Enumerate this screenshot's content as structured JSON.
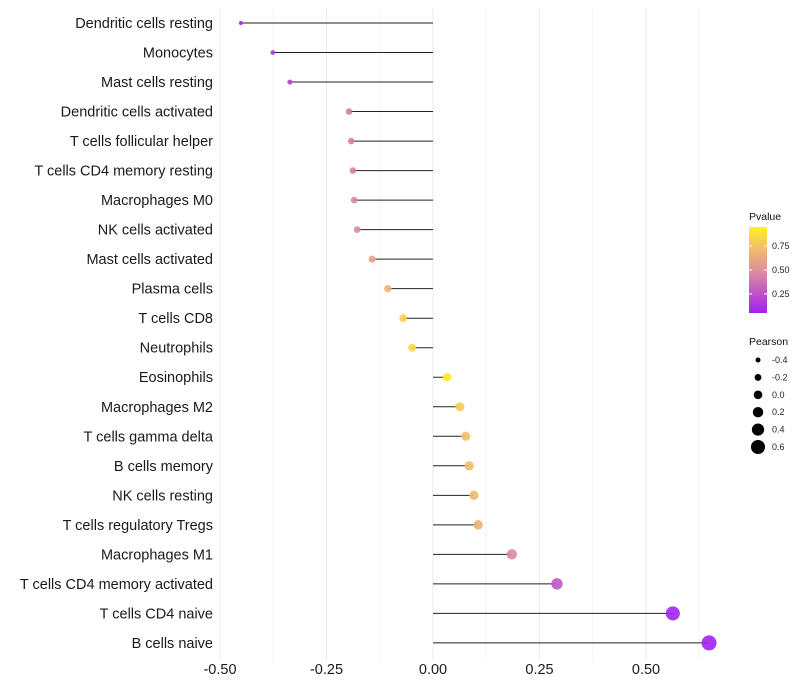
{
  "chart_data": {
    "type": "lollipop",
    "title": "",
    "xlabel": "",
    "ylabel": "",
    "xlim": [
      -0.5,
      0.65
    ],
    "x_ticks": [
      -0.5,
      -0.25,
      0,
      0.25,
      0.5
    ],
    "x_tick_labels": [
      "-0.50",
      "-0.25",
      "0.00",
      "0.25",
      "0.50"
    ],
    "grid": true,
    "categories": [
      "Dendritic cells resting",
      "Monocytes",
      "Mast cells resting",
      "Dendritic cells activated",
      "T cells follicular helper",
      "T cells CD4 memory resting",
      "Macrophages M0",
      "NK cells activated",
      "Mast cells activated",
      "Plasma cells",
      "T cells CD8",
      "Neutrophils",
      "Eosinophils",
      "Macrophages M2",
      "T cells gamma delta",
      "B cells memory",
      "NK cells resting",
      "T cells regulatory  Tregs",
      "Macrophages M1",
      "T cells CD4 memory activated",
      "T cells CD4 naive",
      "B cells naive"
    ],
    "pearson": [
      -0.451,
      -0.376,
      -0.336,
      -0.197,
      -0.192,
      -0.188,
      -0.185,
      -0.178,
      -0.143,
      -0.106,
      -0.07,
      -0.049,
      0.033,
      0.063,
      0.077,
      0.085,
      0.096,
      0.106,
      0.185,
      0.291,
      0.563,
      0.648
    ],
    "pvalue": [
      0.03,
      0.1,
      0.13,
      0.37,
      0.38,
      0.39,
      0.4,
      0.42,
      0.55,
      0.66,
      0.8,
      0.82,
      0.92,
      0.78,
      0.72,
      0.7,
      0.68,
      0.65,
      0.42,
      0.22,
      0.02,
      0.01
    ],
    "legend": {
      "placement": "right",
      "color": {
        "title": "Pvalue",
        "labels": [
          "0.75",
          "0.50",
          "0.25"
        ],
        "values": [
          0.75,
          0.5,
          0.25
        ],
        "low_color": "#A020F0",
        "mid_color": "#E0909A",
        "high_color": "#FFFF00"
      },
      "size": {
        "title": "Pearson",
        "labels": [
          "-0.4",
          "-0.2",
          "0.0",
          "0.2",
          "0.4",
          "0.6"
        ],
        "values": [
          -0.4,
          -0.2,
          0,
          0.2,
          0.4,
          0.6
        ]
      }
    }
  }
}
